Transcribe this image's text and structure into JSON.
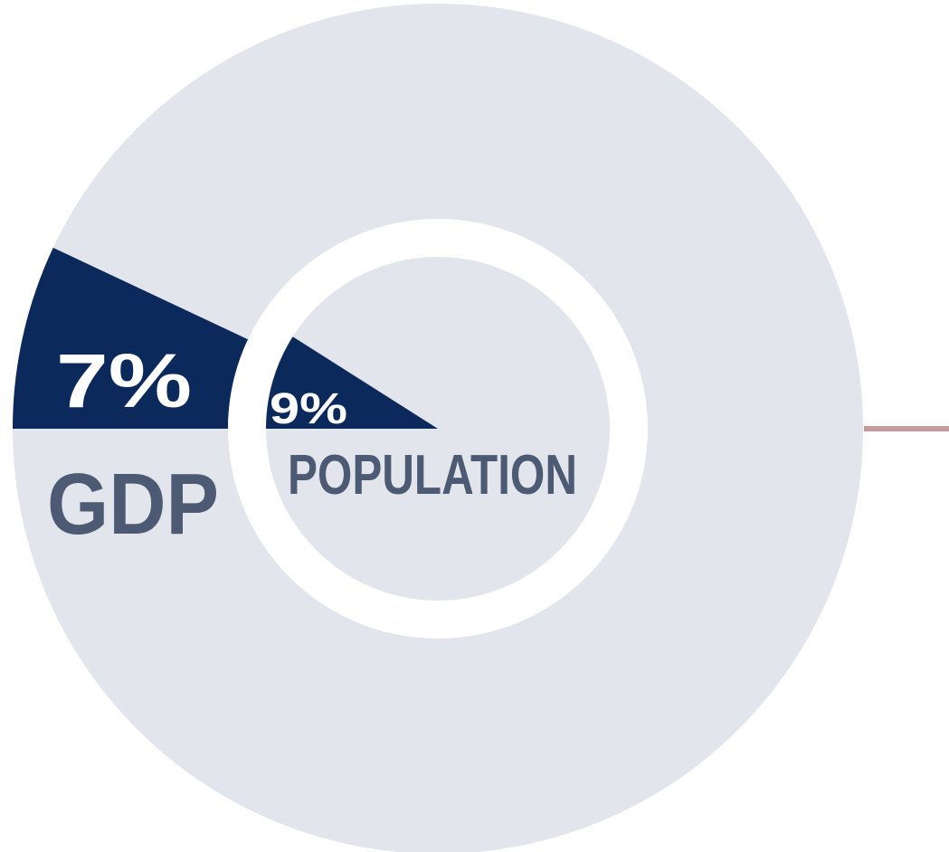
{
  "colors": {
    "ring": "#e3e5ec",
    "slice": "#0b2a5b",
    "label": "#4d5a73",
    "connector": "#c99a9a",
    "background": "#ffffff"
  },
  "chart_data": {
    "type": "pie",
    "series": [
      {
        "label": "GDP",
        "value": 7,
        "value_label": "7%",
        "ring": "outer"
      },
      {
        "label": "POPULATION",
        "value": 9,
        "value_label": "9%",
        "ring": "inner"
      }
    ]
  }
}
